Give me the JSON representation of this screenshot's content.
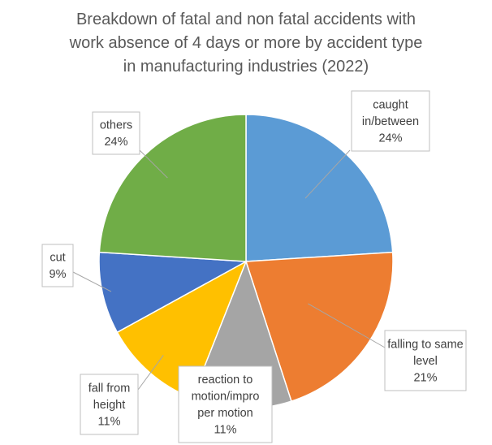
{
  "chart_data": {
    "type": "pie",
    "title_lines": [
      "Breakdown of fatal and non fatal accidents with",
      "work absence of 4 days or more by accident type",
      "in manufacturing industries (2022)"
    ],
    "slices": [
      {
        "label_lines": [
          "caught",
          "in/between"
        ],
        "value": 24,
        "value_label": "24%",
        "color": "#5B9BD5"
      },
      {
        "label_lines": [
          "falling to same",
          "level"
        ],
        "value": 21,
        "value_label": "21%",
        "color": "#ED7D31"
      },
      {
        "label_lines": [
          "reaction to",
          "motion/impro",
          "per motion"
        ],
        "value": 11,
        "value_label": "11%",
        "color": "#A5A5A5"
      },
      {
        "label_lines": [
          "fall from",
          "height"
        ],
        "value": 11,
        "value_label": "11%",
        "color": "#FFC000"
      },
      {
        "label_lines": [
          "cut"
        ],
        "value": 9,
        "value_label": "9%",
        "color": "#4472C4"
      },
      {
        "label_lines": [
          "others"
        ],
        "value": 24,
        "value_label": "24%",
        "color": "#70AD47"
      }
    ],
    "start_angle": "12 o'clock",
    "direction": "clockwise",
    "legend": "none",
    "data_labels": "callouts"
  }
}
